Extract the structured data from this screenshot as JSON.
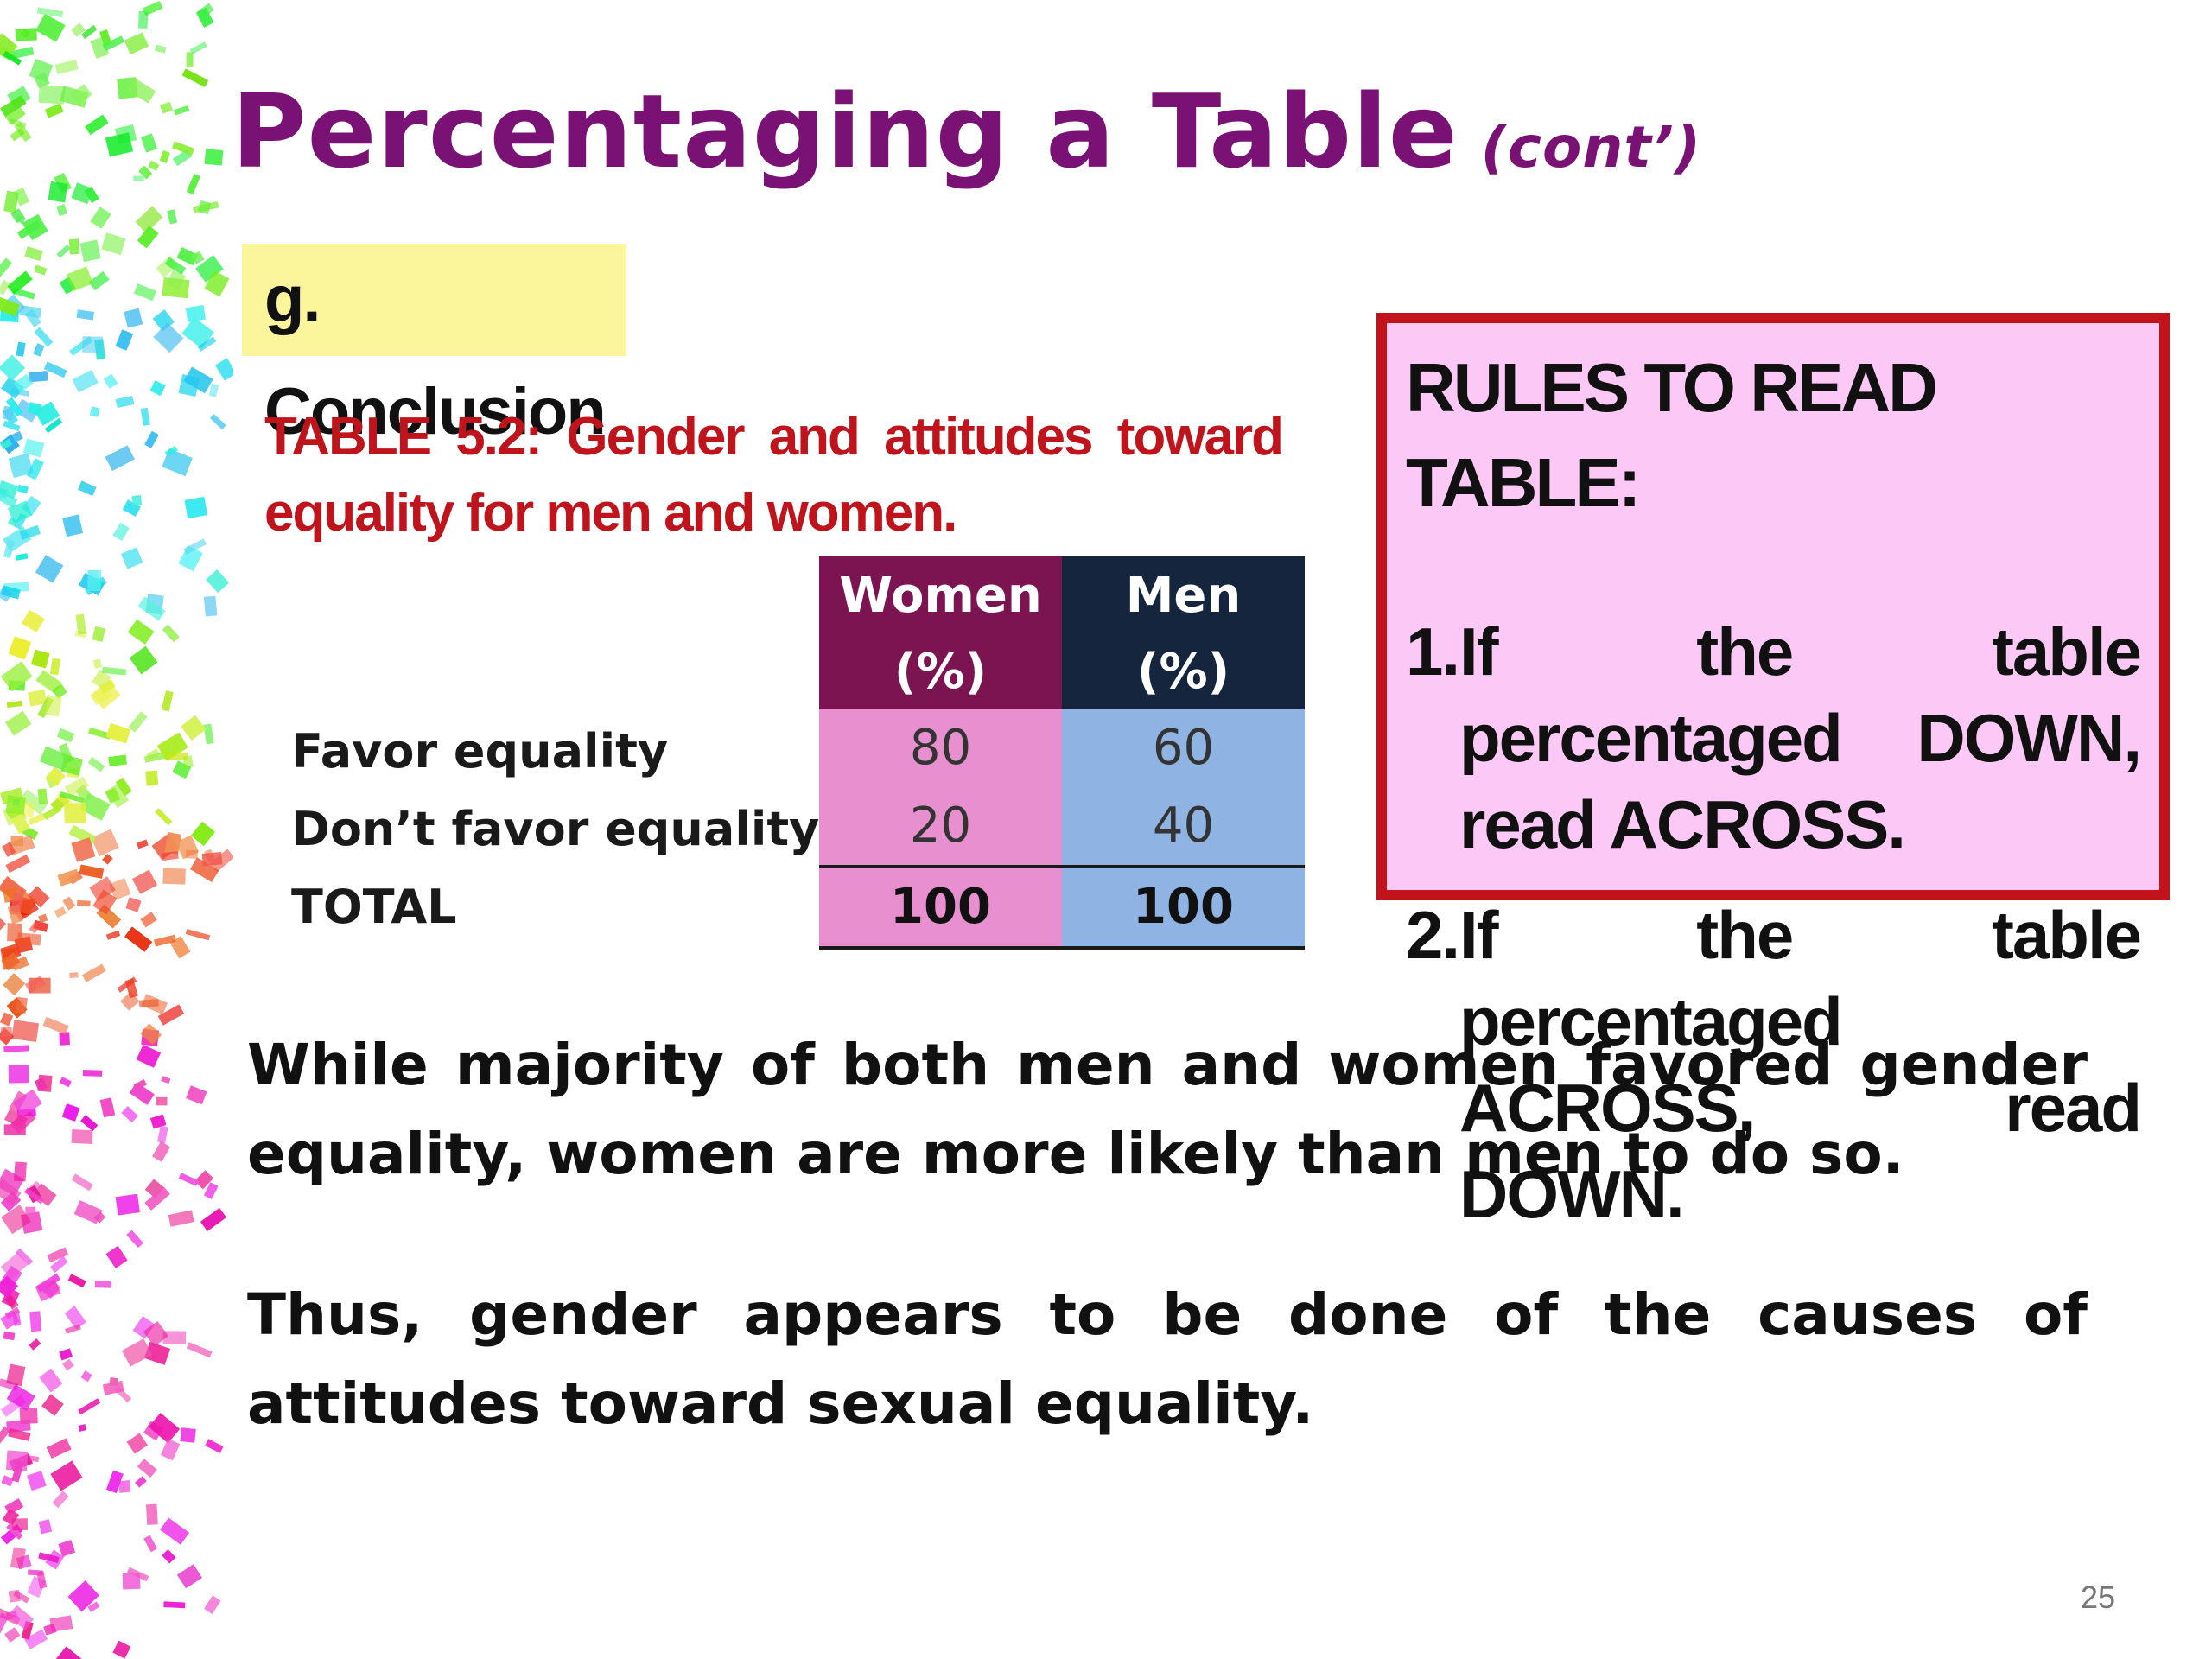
{
  "slide": {
    "title": "Percentaging a Table",
    "title_suffix": "(cont’)",
    "section_label": "g. Conclusion",
    "table_caption": "TABLE 5.2: Gender and attitudes toward equality for men and women.",
    "page_number": "25"
  },
  "table": {
    "columns": [
      {
        "label": "Women",
        "unit": "(%)"
      },
      {
        "label": "Men",
        "unit": "(%)"
      }
    ],
    "rows": [
      {
        "label": "Favor equality",
        "values": [
          "80",
          "60"
        ]
      },
      {
        "label": "Don’t favor equality",
        "values": [
          "20",
          "40"
        ]
      },
      {
        "label": "TOTAL",
        "values": [
          "100",
          "100"
        ]
      }
    ]
  },
  "rules": {
    "heading": "RULES TO READ TABLE:",
    "items": [
      {
        "num": "1.",
        "text": "If the table percentaged DOWN, read ACROSS."
      },
      {
        "num": "2.",
        "text": "If the table percentaged ACROSS, read DOWN."
      }
    ]
  },
  "conclusion": {
    "paragraphs": [
      "While majority of both men and women favored gender equality, women are more likely than men to do so.",
      "Thus, gender appears to be done of the causes of attitudes toward sexual equality."
    ]
  },
  "colors": {
    "title": "#7a1276",
    "caption": "#c0141c",
    "section_highlight": "#fbf59b",
    "women_header": "#7d1452",
    "men_header": "#14253d",
    "women_cells": "#e78fcf",
    "men_cells": "#8fb3e3",
    "rules_border": "#c2121a",
    "rules_fill": "#fcc9f6"
  },
  "decoration": {
    "left_strip": "confetti-pattern"
  }
}
